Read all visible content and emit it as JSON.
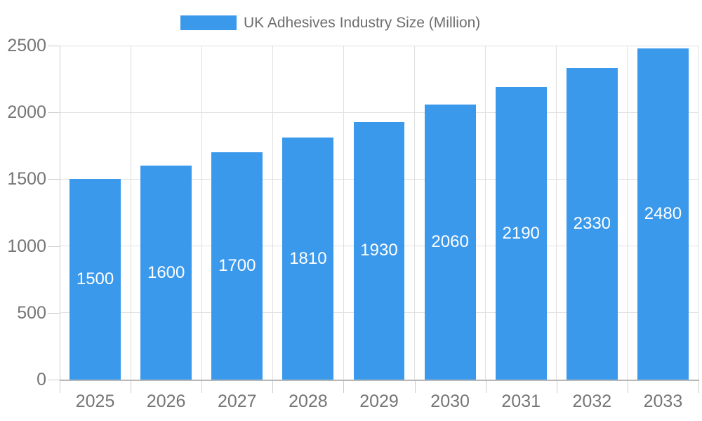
{
  "legend": {
    "label": "UK Adhesives Industry Size (Million)",
    "swatch_color": "#3B99EC"
  },
  "chart_data": {
    "type": "bar",
    "title": "UK Adhesives Industry Size (Million)",
    "categories": [
      "2025",
      "2026",
      "2027",
      "2028",
      "2029",
      "2030",
      "2031",
      "2032",
      "2033"
    ],
    "values": [
      1500,
      1600,
      1700,
      1810,
      1930,
      2060,
      2190,
      2330,
      2480
    ],
    "series_name": "UK Adhesives Industry Size (Million)",
    "xlabel": "",
    "ylabel": "",
    "ylim": [
      0,
      2500
    ],
    "yticks": [
      0,
      500,
      1000,
      1500,
      2000,
      2500
    ],
    "grid": true,
    "legend_position": "top",
    "bar_labels_shown": true,
    "colors": {
      "bar": "#3B99EC",
      "bar_label": "#ffffff",
      "axis_text": "#757575",
      "legend_text": "#6e6e6e",
      "gridline": "#e0e0e0",
      "axis_line": "#b7b7b7",
      "tick_mark": "#cccccc"
    }
  }
}
